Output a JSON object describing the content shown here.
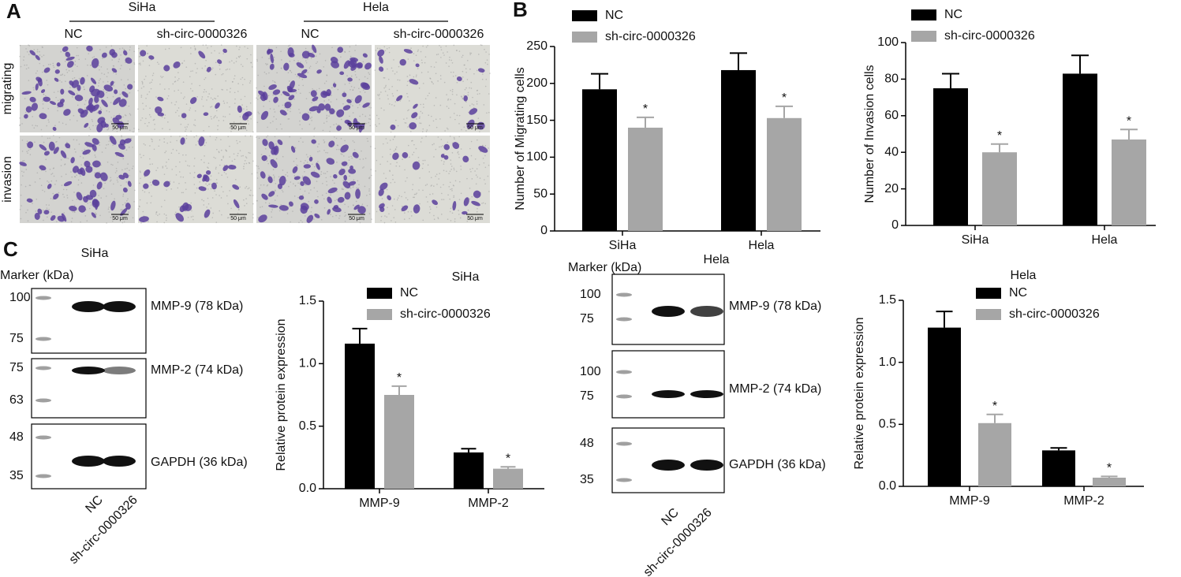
{
  "panel_labels": [
    "A",
    "B",
    "C"
  ],
  "micrographs": {
    "groups": [
      "SiHa",
      "Hela"
    ],
    "columns": [
      "NC",
      "sh-circ-0000326",
      "NC",
      "sh-circ-0000326"
    ],
    "rows": [
      "migrating",
      "invasion"
    ],
    "scale_bar": "50 μm"
  },
  "blots": [
    {
      "title": "SiHa",
      "marker_label": "Marker (kDa)",
      "panels": [
        {
          "markers": [
            100,
            75
          ],
          "label": "MMP-9 (78 kDa)"
        },
        {
          "markers": [
            75,
            63
          ],
          "label": "MMP-2 (74 kDa)"
        },
        {
          "markers": [
            48,
            35
          ],
          "label": "GAPDH (36 kDa)"
        }
      ],
      "lanes": [
        "NC",
        "sh-circ-0000326"
      ]
    },
    {
      "title": "Hela",
      "marker_label": "Marker (kDa)",
      "panels": [
        {
          "markers": [
            100,
            75
          ],
          "label": "MMP-9 (78 kDa)"
        },
        {
          "markers": [
            100,
            75
          ],
          "label": "MMP-2 (74 kDa)"
        },
        {
          "markers": [
            48,
            35
          ],
          "label": "GAPDH (36 kDa)"
        }
      ],
      "lanes": [
        "NC",
        "sh-circ-0000326"
      ]
    }
  ],
  "chart_data": [
    {
      "type": "bar",
      "ylabel": "Number of Migrating cells",
      "categories": [
        "SiHa",
        "Hela"
      ],
      "series": [
        {
          "name": "NC",
          "color": "#000000",
          "values": [
            192,
            218
          ],
          "errors": [
            21,
            23
          ]
        },
        {
          "name": "sh-circ-0000326",
          "color": "#a6a6a6",
          "values": [
            140,
            153
          ],
          "errors": [
            14,
            16
          ],
          "markers": [
            "*",
            "*"
          ]
        }
      ],
      "ylim": [
        0,
        250
      ],
      "yticks": [
        0,
        50,
        100,
        150,
        200,
        250
      ]
    },
    {
      "type": "bar",
      "ylabel": "Number of Invasion cells",
      "categories": [
        "SiHa",
        "Hela"
      ],
      "series": [
        {
          "name": "NC",
          "color": "#000000",
          "values": [
            75,
            83
          ],
          "errors": [
            8,
            10
          ]
        },
        {
          "name": "sh-circ-0000326",
          "color": "#a6a6a6",
          "values": [
            40,
            47
          ],
          "errors": [
            4.5,
            5.5
          ],
          "markers": [
            "*",
            "*"
          ]
        }
      ],
      "ylim": [
        0,
        100
      ],
      "yticks": [
        0,
        20,
        40,
        60,
        80,
        100
      ]
    },
    {
      "type": "bar",
      "title": "SiHa",
      "ylabel": "Relative protein expression",
      "categories": [
        "MMP-9",
        "MMP-2"
      ],
      "series": [
        {
          "name": "NC",
          "color": "#000000",
          "values": [
            1.16,
            0.29
          ],
          "errors": [
            0.12,
            0.03
          ]
        },
        {
          "name": "sh-circ-0000326",
          "color": "#a6a6a6",
          "values": [
            0.75,
            0.16
          ],
          "errors": [
            0.07,
            0.015
          ],
          "markers": [
            "*",
            "*"
          ]
        }
      ],
      "ylim": [
        0,
        1.5
      ],
      "yticks": [
        {
          "value": 0,
          "label": "0.0"
        },
        0.5,
        {
          "value": 1,
          "label": "1.0"
        },
        1.5
      ]
    },
    {
      "type": "bar",
      "title": "Hela",
      "ylabel": "Relative protein expression",
      "categories": [
        "MMP-9",
        "MMP-2"
      ],
      "series": [
        {
          "name": "NC",
          "color": "#000000",
          "values": [
            1.28,
            0.29
          ],
          "errors": [
            0.13,
            0.02
          ]
        },
        {
          "name": "sh-circ-0000326",
          "color": "#a6a6a6",
          "values": [
            0.51,
            0.07
          ],
          "errors": [
            0.07,
            0.01
          ],
          "markers": [
            "*",
            "*"
          ]
        }
      ],
      "ylim": [
        0,
        1.5
      ],
      "yticks": [
        {
          "value": 0,
          "label": "0.0"
        },
        0.5,
        {
          "value": 1,
          "label": "1.0"
        },
        1.5
      ]
    }
  ]
}
